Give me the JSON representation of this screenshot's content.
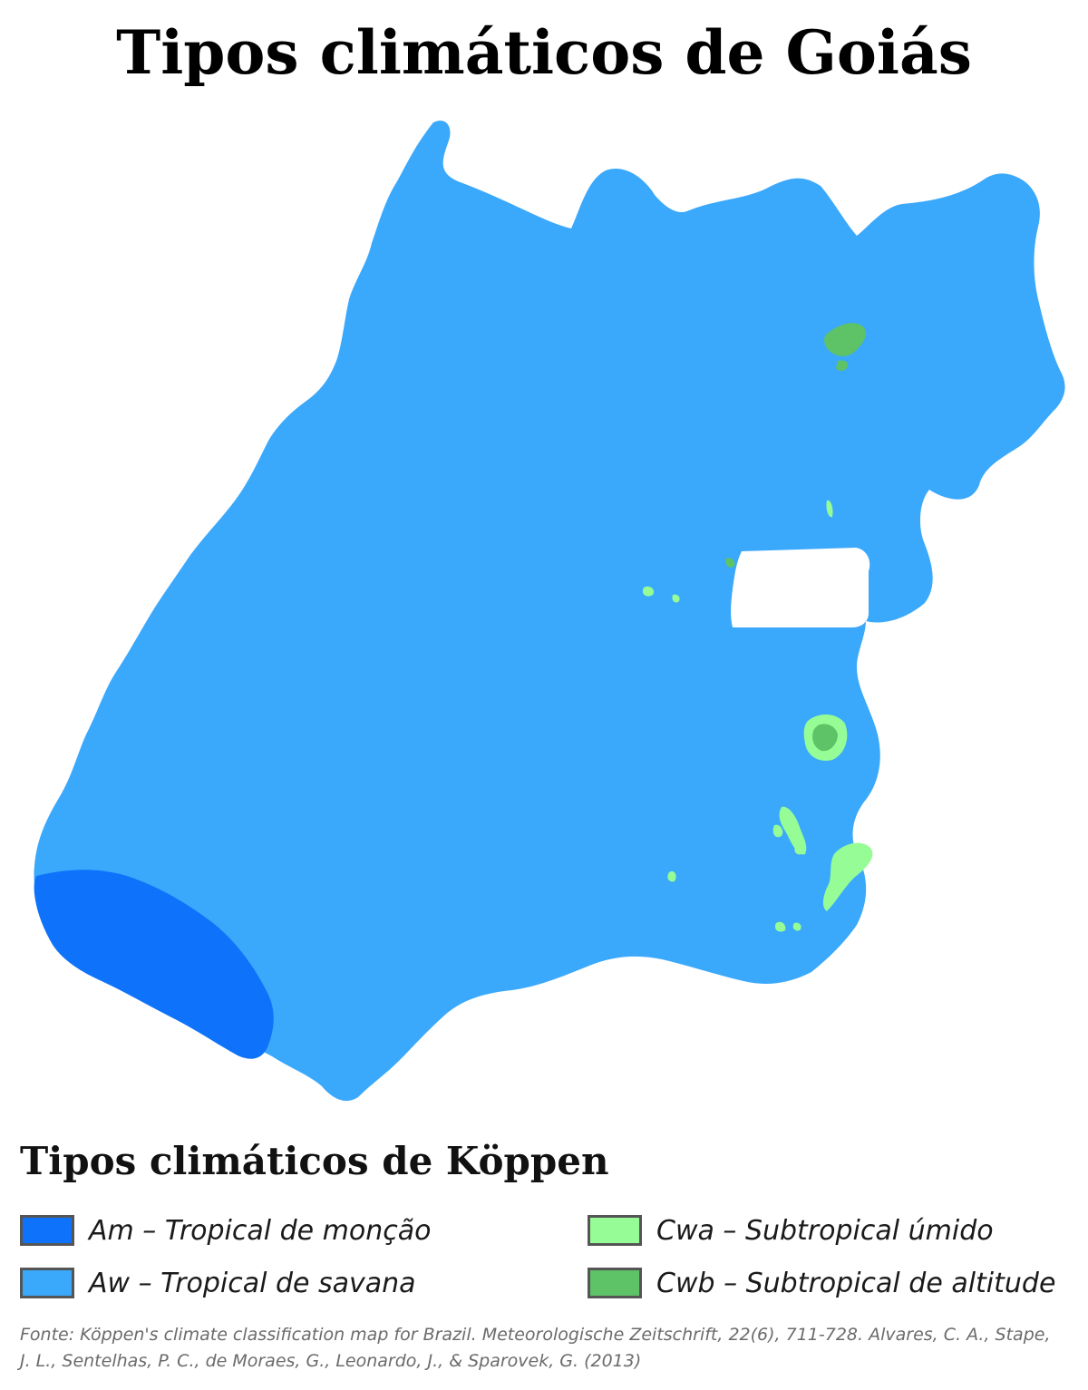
{
  "title": "Tipos climáticos de Goiás",
  "legend": {
    "title": "Tipos climáticos de Köppen",
    "items": [
      {
        "code": "Am",
        "label": "Am – Tropical de monção",
        "color": "#0e73fa"
      },
      {
        "code": "Aw",
        "label": "Aw – Tropical de savana",
        "color": "#3aa8fb"
      },
      {
        "code": "Cwa",
        "label": "Cwa – Subtropical úmido",
        "color": "#96fd96"
      },
      {
        "code": "Cwb",
        "label": "Cwb – Subtropical de altitude",
        "color": "#5ec266"
      }
    ]
  },
  "source": "Fonte: Köppen's climate classification map for Brazil. Meteorologische Zeitschrift, 22(6), 711-728. Alvares, C. A., Stape, J. L., Sentelhas, P. C., de Moraes, G., Leonardo, J., & Sparovek, G. (2013)"
}
